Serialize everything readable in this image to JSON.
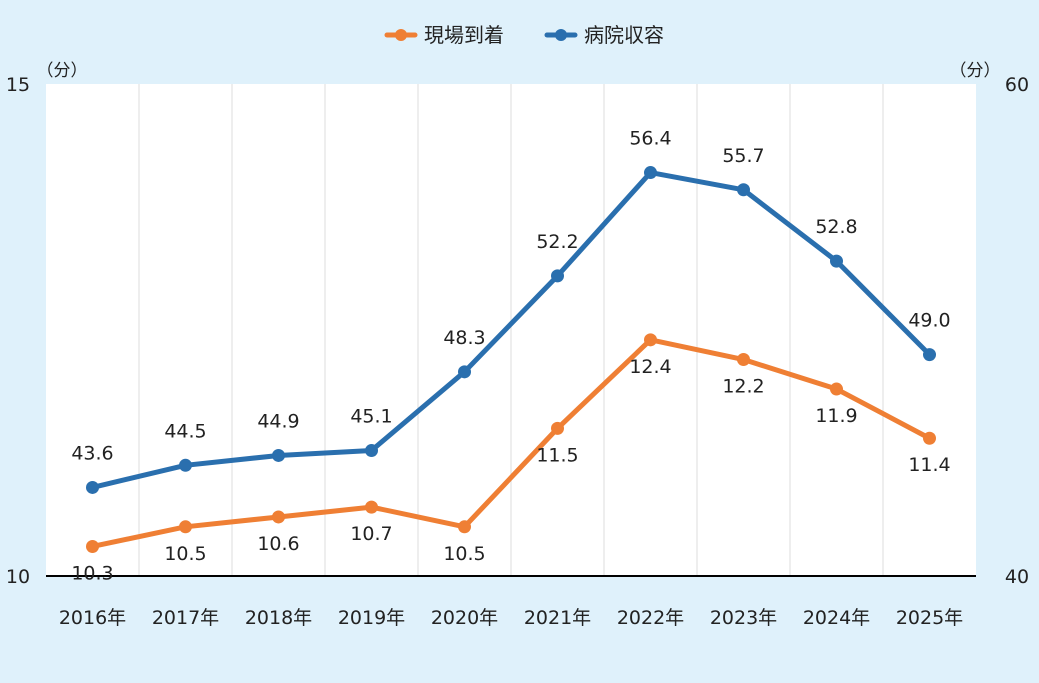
{
  "chart_data": {
    "type": "line",
    "title": "",
    "xlabel": "",
    "ylabel_left": "（分）",
    "ylabel_right": "（分）",
    "categories": [
      "2016年",
      "2017年",
      "2018年",
      "2019年",
      "2020年",
      "2021年",
      "2022年",
      "2023年",
      "2024年",
      "2025年"
    ],
    "ylim_left": [
      10,
      15
    ],
    "ylim_right": [
      40,
      60
    ],
    "left_ticks": [
      "10",
      "15"
    ],
    "right_ticks": [
      "40",
      "60"
    ],
    "grid": "vertical",
    "legend": "top-center",
    "series": [
      {
        "name": "現場到着",
        "axis": "left",
        "color": "#ef7f34",
        "values": [
          10.3,
          10.5,
          10.6,
          10.7,
          10.5,
          11.5,
          12.4,
          12.2,
          11.9,
          11.4
        ],
        "labels": [
          "10.3",
          "10.5",
          "10.6",
          "10.7",
          "10.5",
          "11.5",
          "12.4",
          "12.2",
          "11.9",
          "11.4"
        ]
      },
      {
        "name": "病院収容",
        "axis": "right",
        "color": "#2a6fae",
        "values": [
          43.6,
          44.5,
          44.9,
          45.1,
          48.3,
          52.2,
          56.4,
          55.7,
          52.8,
          49.0
        ],
        "labels": [
          "43.6",
          "44.5",
          "44.9",
          "45.1",
          "48.3",
          "52.2",
          "56.4",
          "55.7",
          "52.8",
          "49.0"
        ]
      }
    ]
  }
}
